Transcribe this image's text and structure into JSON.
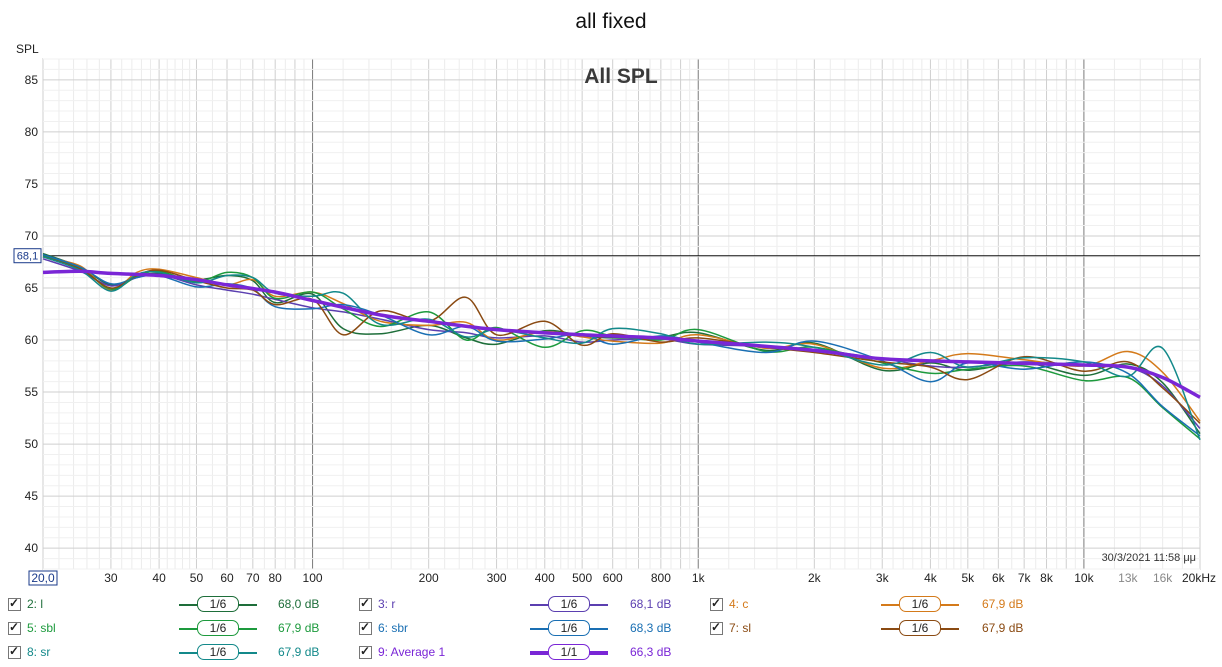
{
  "title": "all fixed",
  "timestamp": "30/3/2021 11:58 μμ",
  "chart_data": {
    "type": "line",
    "title": "All SPL",
    "ylabel": "SPL",
    "xscale": "log",
    "xlim": [
      20,
      20000
    ],
    "ylim": [
      38,
      87
    ],
    "grid": true,
    "y_ticks": [
      "85",
      "80",
      "75",
      "70",
      "65",
      "60",
      "55",
      "50",
      "45",
      "40"
    ],
    "x_ticks": [
      "20,0",
      "30",
      "40",
      "50",
      "60",
      "70",
      "80",
      "100",
      "200",
      "300",
      "400",
      "500",
      "600",
      "800",
      "1k",
      "2k",
      "3k",
      "4k",
      "5k",
      "6k",
      "7k",
      "8k",
      "10k",
      "13k",
      "16k",
      "20kHz"
    ],
    "cursor_level": {
      "label": "68,1",
      "y": 68.1
    },
    "series": [
      {
        "name": "2: l",
        "color": "#1e6e3a",
        "smoothing": "1/6",
        "level": "68,0 dB",
        "x": [
          20,
          25,
          30,
          35,
          40,
          50,
          60,
          70,
          80,
          100,
          120,
          150,
          200,
          250,
          300,
          400,
          500,
          600,
          800,
          1000,
          1500,
          2000,
          3000,
          4000,
          5000,
          7000,
          10000,
          13000,
          16000,
          20000
        ],
        "y": [
          68.3,
          67.0,
          65.3,
          66.1,
          66.4,
          65.8,
          66.2,
          65.7,
          63.6,
          64.4,
          61.1,
          60.6,
          61.4,
          60.2,
          59.6,
          60.9,
          60.4,
          60.2,
          60.3,
          60.7,
          59.0,
          59.7,
          57.1,
          57.8,
          57.1,
          57.8,
          56.6,
          57.7,
          55.9,
          51.0
        ]
      },
      {
        "name": "3: r",
        "color": "#5b3fb0",
        "smoothing": "1/6",
        "level": "68,1 dB",
        "x": [
          20,
          25,
          30,
          35,
          40,
          50,
          60,
          70,
          80,
          100,
          120,
          150,
          200,
          250,
          300,
          400,
          500,
          600,
          800,
          1000,
          1500,
          2000,
          3000,
          4000,
          5000,
          7000,
          10000,
          13000,
          16000,
          20000
        ],
        "y": [
          67.8,
          66.6,
          65.2,
          66.0,
          66.3,
          65.3,
          64.8,
          64.4,
          63.9,
          63.1,
          62.7,
          62.0,
          61.0,
          60.7,
          60.2,
          60.4,
          59.8,
          60.0,
          60.1,
          59.6,
          59.4,
          59.1,
          58.2,
          57.5,
          57.4,
          57.9,
          57.6,
          57.4,
          55.6,
          51.5
        ]
      },
      {
        "name": "4: c",
        "color": "#d47a1a",
        "smoothing": "1/6",
        "level": "67,9 dB",
        "x": [
          20,
          25,
          30,
          35,
          40,
          50,
          60,
          70,
          80,
          100,
          120,
          150,
          200,
          250,
          300,
          400,
          500,
          600,
          800,
          1000,
          1500,
          2000,
          3000,
          4000,
          5000,
          7000,
          10000,
          13000,
          16000,
          20000
        ],
        "y": [
          68.0,
          67.1,
          64.8,
          66.5,
          66.8,
          66.0,
          65.3,
          65.8,
          64.2,
          64.6,
          63.5,
          61.8,
          61.4,
          61.7,
          60.0,
          60.8,
          60.3,
          59.9,
          59.7,
          60.5,
          59.2,
          59.6,
          57.3,
          58.0,
          58.7,
          58.1,
          57.5,
          58.9,
          56.9,
          52.2
        ]
      },
      {
        "name": "5: sbl",
        "color": "#1d9a3d",
        "smoothing": "1/6",
        "level": "67,9 dB",
        "x": [
          20,
          25,
          30,
          35,
          40,
          50,
          60,
          70,
          80,
          100,
          120,
          150,
          200,
          250,
          300,
          400,
          500,
          600,
          800,
          1000,
          1500,
          2000,
          3000,
          4000,
          5000,
          7000,
          10000,
          13000,
          16000,
          20000
        ],
        "y": [
          68.1,
          66.9,
          64.9,
          66.1,
          66.6,
          65.6,
          66.5,
          66.0,
          64.0,
          64.6,
          63.0,
          61.3,
          62.7,
          60.0,
          61.2,
          59.3,
          60.9,
          60.4,
          60.0,
          61.0,
          58.9,
          59.3,
          57.8,
          56.8,
          57.2,
          57.5,
          56.1,
          56.4,
          53.5,
          50.5
        ]
      },
      {
        "name": "6: sbr",
        "color": "#1a6fb3",
        "smoothing": "1/6",
        "level": "68,3 dB",
        "x": [
          20,
          25,
          30,
          35,
          40,
          50,
          60,
          70,
          80,
          100,
          120,
          150,
          200,
          250,
          300,
          400,
          500,
          600,
          800,
          1000,
          1500,
          2000,
          3000,
          4000,
          5000,
          7000,
          10000,
          13000,
          16000,
          20000
        ],
        "y": [
          68.2,
          67.0,
          65.4,
          66.0,
          66.2,
          65.1,
          65.4,
          64.9,
          63.2,
          63.0,
          63.4,
          62.4,
          60.5,
          61.3,
          59.9,
          60.1,
          60.6,
          59.6,
          60.4,
          59.8,
          58.8,
          59.9,
          58.0,
          56.0,
          57.8,
          57.2,
          57.9,
          56.8,
          53.6,
          50.8
        ]
      },
      {
        "name": "7: sl",
        "color": "#8a4a12",
        "smoothing": "1/6",
        "level": "67,9 dB",
        "x": [
          20,
          25,
          30,
          35,
          40,
          50,
          60,
          70,
          80,
          100,
          120,
          150,
          200,
          250,
          300,
          400,
          500,
          600,
          800,
          1000,
          1500,
          2000,
          3000,
          4000,
          5000,
          7000,
          10000,
          13000,
          16000,
          20000
        ],
        "y": [
          68.0,
          66.8,
          65.0,
          66.2,
          66.7,
          65.7,
          65.0,
          64.8,
          63.4,
          63.9,
          60.5,
          62.8,
          61.8,
          64.1,
          60.5,
          61.8,
          59.5,
          60.6,
          59.8,
          60.2,
          59.3,
          58.8,
          57.9,
          57.4,
          56.2,
          58.4,
          57.0,
          57.9,
          55.4,
          52.0
        ]
      },
      {
        "name": "8: sr",
        "color": "#13898a",
        "smoothing": "1/6",
        "level": "67,9 dB",
        "x": [
          20,
          25,
          30,
          35,
          40,
          50,
          60,
          70,
          80,
          100,
          120,
          150,
          200,
          250,
          300,
          400,
          500,
          600,
          800,
          1000,
          1500,
          2000,
          3000,
          4000,
          5000,
          7000,
          10000,
          13000,
          16000,
          20000
        ],
        "y": [
          68.0,
          66.7,
          64.7,
          66.3,
          66.5,
          65.5,
          66.2,
          66.0,
          64.5,
          64.2,
          64.5,
          61.5,
          62.0,
          60.3,
          61.0,
          60.2,
          59.7,
          61.1,
          60.6,
          59.6,
          59.8,
          59.3,
          57.6,
          58.8,
          57.4,
          58.3,
          57.9,
          56.5,
          59.2,
          50.4
        ]
      },
      {
        "name": "9: Average 1",
        "color": "#7a26d6",
        "smoothing": "1/1",
        "level": "66,3 dB",
        "x": [
          20,
          25,
          30,
          40,
          50,
          60,
          80,
          100,
          150,
          200,
          300,
          500,
          800,
          1000,
          2000,
          3000,
          5000,
          8000,
          10000,
          13000,
          16000,
          20000
        ],
        "y": [
          66.5,
          66.6,
          66.4,
          66.2,
          65.8,
          65.3,
          64.6,
          63.8,
          62.4,
          61.8,
          61.0,
          60.5,
          60.2,
          59.9,
          59.0,
          58.2,
          57.9,
          57.7,
          57.6,
          57.4,
          56.4,
          54.5
        ]
      }
    ]
  }
}
